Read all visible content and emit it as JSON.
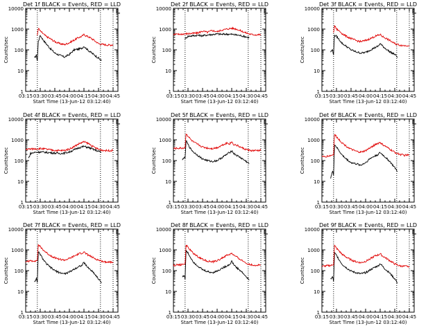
{
  "shared": {
    "xlabel": "Start Time (13-Jun-12 03:12:40)",
    "ylabel": "Counts/sec",
    "xticks": [
      "03:15",
      "03:30",
      "03:45",
      "04:00",
      "04:15",
      "04:30",
      "04:45"
    ],
    "yticks": [
      "1",
      "10",
      "100",
      "1000",
      "10000"
    ],
    "dotted_times": [
      "03:27",
      "04:32",
      "04:45"
    ],
    "colors": {
      "events": "#000000",
      "lld": "#e00000",
      "axis": "#000000"
    }
  },
  "chart_data": [
    {
      "type": "line",
      "title": "Det 1f BLACK = Events, RED = LLD",
      "xlim": [
        "03:15",
        "04:50"
      ],
      "ylim": [
        1,
        10000
      ],
      "yscale": "log",
      "series": [
        {
          "name": "Events",
          "x": [
            "03:24",
            "03:26",
            "03:27",
            "03:28",
            "03:30",
            "03:33",
            "03:36",
            "03:40",
            "03:45",
            "03:50",
            "03:55",
            "04:00",
            "04:05",
            "04:10",
            "04:13",
            "04:15",
            "04:17",
            "04:20",
            "04:25",
            "04:30",
            "04:33"
          ],
          "values": [
            40,
            55,
            30,
            250,
            500,
            300,
            200,
            120,
            70,
            55,
            45,
            60,
            100,
            110,
            120,
            150,
            120,
            90,
            60,
            40,
            30
          ]
        },
        {
          "name": "LLD",
          "x": [
            "03:27",
            "03:28",
            "03:30",
            "03:33",
            "03:36",
            "03:40",
            "03:45",
            "03:50",
            "03:55",
            "04:00",
            "04:05",
            "04:10",
            "04:13",
            "04:15",
            "04:17",
            "04:20",
            "04:25",
            "04:30",
            "04:35",
            "04:40",
            "04:45"
          ],
          "values": [
            500,
            1100,
            800,
            600,
            450,
            350,
            250,
            200,
            180,
            220,
            300,
            400,
            450,
            550,
            480,
            420,
            300,
            200,
            180,
            170,
            175
          ]
        }
      ]
    },
    {
      "type": "line",
      "title": "Det 2f BLACK = Events, RED = LLD",
      "xlim": [
        "03:15",
        "04:50"
      ],
      "ylim": [
        1,
        10000
      ],
      "yscale": "log",
      "series": [
        {
          "name": "Events",
          "x": [
            "03:27",
            "03:30",
            "03:35",
            "03:40",
            "03:45",
            "03:50",
            "03:55",
            "04:00",
            "04:05",
            "04:10",
            "04:15",
            "04:20",
            "04:25",
            "04:30",
            "04:33"
          ],
          "values": [
            350,
            450,
            480,
            500,
            480,
            520,
            550,
            580,
            560,
            570,
            560,
            520,
            480,
            420,
            380
          ]
        },
        {
          "name": "LLD",
          "x": [
            "03:15",
            "03:20",
            "03:25",
            "03:30",
            "03:35",
            "03:40",
            "03:45",
            "03:50",
            "03:55",
            "04:00",
            "04:05",
            "04:10",
            "04:15",
            "04:20",
            "04:25",
            "04:30",
            "04:35",
            "04:40",
            "04:45"
          ],
          "values": [
            550,
            560,
            580,
            600,
            620,
            650,
            800,
            700,
            850,
            750,
            900,
            1000,
            1100,
            1000,
            800,
            650,
            550,
            530,
            540
          ]
        }
      ]
    },
    {
      "type": "line",
      "title": "Det 3f BLACK = Events, RED = LLD",
      "xlim": [
        "03:15",
        "04:50"
      ],
      "ylim": [
        1,
        10000
      ],
      "yscale": "log",
      "series": [
        {
          "name": "Events",
          "x": [
            "03:24",
            "03:26",
            "03:27",
            "03:28",
            "03:30",
            "03:33",
            "03:36",
            "03:40",
            "03:45",
            "03:50",
            "03:55",
            "04:00",
            "04:05",
            "04:10",
            "04:13",
            "04:15",
            "04:17",
            "04:20",
            "04:25",
            "04:30",
            "04:33"
          ],
          "values": [
            80,
            100,
            60,
            500,
            450,
            300,
            200,
            150,
            100,
            80,
            70,
            75,
            100,
            130,
            150,
            200,
            160,
            120,
            80,
            60,
            45
          ]
        },
        {
          "name": "LLD",
          "x": [
            "03:27",
            "03:28",
            "03:30",
            "03:33",
            "03:36",
            "03:40",
            "03:45",
            "03:50",
            "03:55",
            "04:00",
            "04:05",
            "04:10",
            "04:13",
            "04:15",
            "04:17",
            "04:20",
            "04:25",
            "04:30",
            "04:35",
            "04:40",
            "04:45"
          ],
          "values": [
            600,
            1500,
            1000,
            800,
            600,
            450,
            350,
            280,
            250,
            280,
            350,
            450,
            500,
            550,
            450,
            380,
            280,
            200,
            170,
            160,
            165
          ]
        }
      ]
    },
    {
      "type": "line",
      "title": "Det 4f BLACK = Events, RED = LLD",
      "xlim": [
        "03:15",
        "04:50"
      ],
      "ylim": [
        1,
        10000
      ],
      "yscale": "log",
      "series": [
        {
          "name": "Events",
          "x": [
            "03:18",
            "03:20",
            "03:25",
            "03:30",
            "03:35",
            "03:40",
            "03:45",
            "03:50",
            "03:55",
            "04:00",
            "04:05",
            "04:10",
            "04:15",
            "04:20",
            "04:25",
            "04:30",
            "04:33"
          ],
          "values": [
            130,
            220,
            250,
            260,
            250,
            240,
            230,
            220,
            230,
            260,
            330,
            420,
            480,
            420,
            340,
            280,
            250
          ]
        },
        {
          "name": "LLD",
          "x": [
            "03:15",
            "03:20",
            "03:25",
            "03:30",
            "03:35",
            "03:40",
            "03:45",
            "03:50",
            "03:55",
            "04:00",
            "04:05",
            "04:10",
            "04:15",
            "04:20",
            "04:25",
            "04:30",
            "04:35",
            "04:40",
            "04:45"
          ],
          "values": [
            350,
            360,
            370,
            380,
            360,
            330,
            310,
            300,
            310,
            360,
            480,
            650,
            800,
            650,
            450,
            350,
            310,
            300,
            310
          ]
        }
      ]
    },
    {
      "type": "line",
      "title": "Det 5f BLACK = Events, RED = LLD",
      "xlim": [
        "03:15",
        "04:50"
      ],
      "ylim": [
        1,
        10000
      ],
      "yscale": "log",
      "series": [
        {
          "name": "Events",
          "x": [
            "03:24",
            "03:26",
            "03:27",
            "03:28",
            "03:30",
            "03:33",
            "03:36",
            "03:40",
            "03:45",
            "03:50",
            "03:55",
            "04:00",
            "04:05",
            "04:10",
            "04:13",
            "04:15",
            "04:17",
            "04:20",
            "04:25",
            "04:30",
            "04:33"
          ],
          "values": [
            100,
            150,
            120,
            900,
            600,
            350,
            250,
            180,
            120,
            100,
            90,
            100,
            140,
            200,
            250,
            300,
            220,
            180,
            130,
            90,
            70
          ]
        },
        {
          "name": "LLD",
          "x": [
            "03:15",
            "03:20",
            "03:25",
            "03:27",
            "03:28",
            "03:30",
            "03:33",
            "03:36",
            "03:40",
            "03:45",
            "03:50",
            "03:55",
            "04:00",
            "04:05",
            "04:10",
            "04:13",
            "04:15",
            "04:17",
            "04:20",
            "04:25",
            "04:30",
            "04:35",
            "04:40",
            "04:45"
          ],
          "values": [
            380,
            390,
            400,
            420,
            2000,
            1500,
            1000,
            750,
            600,
            450,
            400,
            380,
            420,
            550,
            700,
            650,
            800,
            600,
            550,
            420,
            340,
            300,
            300,
            310
          ]
        }
      ]
    },
    {
      "type": "line",
      "title": "Det 6f BLACK = Events, RED = LLD",
      "xlim": [
        "03:15",
        "04:50"
      ],
      "ylim": [
        1,
        10000
      ],
      "yscale": "log",
      "series": [
        {
          "name": "Events",
          "x": [
            "03:24",
            "03:26",
            "03:27",
            "03:28",
            "03:30",
            "03:33",
            "03:36",
            "03:40",
            "03:45",
            "03:50",
            "03:55",
            "04:00",
            "04:05",
            "04:10",
            "04:13",
            "04:15",
            "04:17",
            "04:20",
            "04:25",
            "04:30",
            "04:33"
          ],
          "values": [
            15,
            30,
            20,
            600,
            450,
            280,
            180,
            120,
            80,
            70,
            60,
            80,
            130,
            170,
            200,
            240,
            200,
            150,
            90,
            45,
            30
          ]
        },
        {
          "name": "LLD",
          "x": [
            "03:15",
            "03:20",
            "03:25",
            "03:27",
            "03:28",
            "03:30",
            "03:33",
            "03:36",
            "03:40",
            "03:45",
            "03:50",
            "03:55",
            "04:00",
            "04:05",
            "04:10",
            "04:13",
            "04:15",
            "04:17",
            "04:20",
            "04:25",
            "04:30",
            "04:35",
            "04:40",
            "04:45"
          ],
          "values": [
            150,
            160,
            180,
            200,
            1800,
            1400,
            1000,
            700,
            500,
            350,
            280,
            250,
            300,
            420,
            600,
            680,
            750,
            600,
            500,
            350,
            250,
            200,
            180,
            185
          ]
        }
      ]
    },
    {
      "type": "line",
      "title": "Det 7f BLACK = Events, RED = LLD",
      "xlim": [
        "03:15",
        "04:50"
      ],
      "ylim": [
        1,
        10000
      ],
      "yscale": "log",
      "series": [
        {
          "name": "Events",
          "x": [
            "03:24",
            "03:26",
            "03:27",
            "03:28",
            "03:30",
            "03:33",
            "03:36",
            "03:40",
            "03:45",
            "03:50",
            "03:55",
            "04:00",
            "04:05",
            "04:10",
            "04:13",
            "04:15",
            "04:17",
            "04:20",
            "04:25",
            "04:30",
            "04:33"
          ],
          "values": [
            30,
            40,
            25,
            800,
            600,
            350,
            220,
            150,
            100,
            80,
            70,
            85,
            120,
            160,
            180,
            250,
            180,
            130,
            80,
            40,
            25
          ]
        },
        {
          "name": "LLD",
          "x": [
            "03:15",
            "03:20",
            "03:25",
            "03:27",
            "03:28",
            "03:30",
            "03:33",
            "03:36",
            "03:40",
            "03:45",
            "03:50",
            "03:55",
            "04:00",
            "04:05",
            "04:10",
            "04:13",
            "04:15",
            "04:17",
            "04:20",
            "04:25",
            "04:30",
            "04:35",
            "04:40",
            "04:45"
          ],
          "values": [
            280,
            290,
            300,
            320,
            1800,
            1400,
            1000,
            750,
            550,
            420,
            350,
            320,
            380,
            500,
            650,
            700,
            800,
            650,
            550,
            400,
            320,
            270,
            260,
            265
          ]
        }
      ]
    },
    {
      "type": "line",
      "title": "Det 8f BLACK = Events, RED = LLD",
      "xlim": [
        "03:15",
        "04:50"
      ],
      "ylim": [
        1,
        10000
      ],
      "yscale": "log",
      "series": [
        {
          "name": "Events",
          "x": [
            "03:24",
            "03:26",
            "03:27",
            "03:28",
            "03:30",
            "03:33",
            "03:36",
            "03:40",
            "03:45",
            "03:50",
            "03:55",
            "04:00",
            "04:05",
            "04:10",
            "04:13",
            "04:15",
            "04:17",
            "04:20",
            "04:25",
            "04:30",
            "04:33"
          ],
          "values": [
            50,
            60,
            40,
            900,
            700,
            400,
            250,
            170,
            110,
            90,
            80,
            95,
            130,
            170,
            200,
            280,
            200,
            140,
            90,
            50,
            35
          ]
        },
        {
          "name": "LLD",
          "x": [
            "03:15",
            "03:20",
            "03:25",
            "03:27",
            "03:28",
            "03:30",
            "03:33",
            "03:36",
            "03:40",
            "03:45",
            "03:50",
            "03:55",
            "04:00",
            "04:05",
            "04:10",
            "04:13",
            "04:15",
            "04:17",
            "04:20",
            "04:25",
            "04:30",
            "04:35",
            "04:40",
            "04:45"
          ],
          "values": [
            180,
            190,
            200,
            220,
            1700,
            1300,
            900,
            650,
            480,
            350,
            290,
            260,
            300,
            400,
            550,
            600,
            700,
            550,
            450,
            320,
            230,
            190,
            180,
            185
          ]
        }
      ]
    },
    {
      "type": "line",
      "title": "Det 9f BLACK = Events, RED = LLD",
      "xlim": [
        "03:15",
        "04:50"
      ],
      "ylim": [
        1,
        10000
      ],
      "yscale": "log",
      "series": [
        {
          "name": "Events",
          "x": [
            "03:24",
            "03:26",
            "03:27",
            "03:28",
            "03:30",
            "03:33",
            "03:36",
            "03:40",
            "03:45",
            "03:50",
            "03:55",
            "04:00",
            "04:05",
            "04:10",
            "04:13",
            "04:15",
            "04:17",
            "04:20",
            "04:25",
            "04:30",
            "04:33"
          ],
          "values": [
            40,
            50,
            30,
            700,
            550,
            320,
            200,
            140,
            95,
            80,
            70,
            80,
            110,
            150,
            170,
            220,
            170,
            120,
            75,
            40,
            25
          ]
        },
        {
          "name": "LLD",
          "x": [
            "03:15",
            "03:20",
            "03:25",
            "03:27",
            "03:28",
            "03:30",
            "03:33",
            "03:36",
            "03:40",
            "03:45",
            "03:50",
            "03:55",
            "04:00",
            "04:05",
            "04:10",
            "04:13",
            "04:15",
            "04:17",
            "04:20",
            "04:25",
            "04:30",
            "04:35",
            "04:40",
            "04:45"
          ],
          "values": [
            160,
            170,
            180,
            200,
            1600,
            1200,
            850,
            600,
            450,
            330,
            270,
            240,
            280,
            380,
            520,
            570,
            650,
            520,
            430,
            300,
            210,
            170,
            160,
            165
          ]
        }
      ]
    }
  ]
}
